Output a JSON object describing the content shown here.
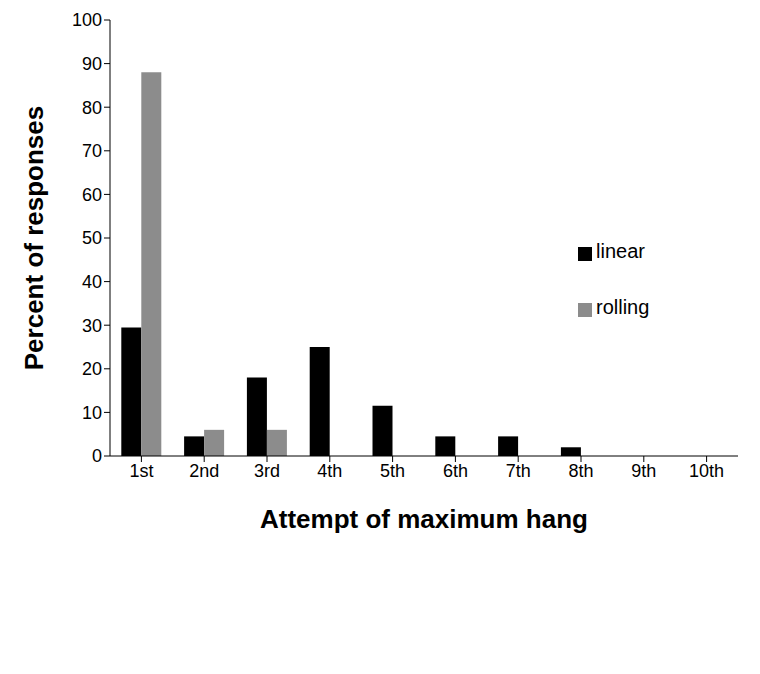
{
  "chart_data": {
    "type": "bar",
    "x_label": "Attempt of maximum hang",
    "y_label": "Percent of responses",
    "categories": [
      "1st",
      "2nd",
      "3rd",
      "4th",
      "5th",
      "6th",
      "7th",
      "8th",
      "9th",
      "10th"
    ],
    "series": [
      {
        "name": "linear",
        "color": "#000000",
        "values": [
          29.5,
          4.5,
          18,
          25,
          11.5,
          4.5,
          4.5,
          2,
          0,
          0
        ]
      },
      {
        "name": "rolling",
        "color": "#8c8c8c",
        "values": [
          88,
          6,
          6,
          0,
          0,
          0,
          0,
          0,
          0,
          0
        ]
      }
    ],
    "ylim": [
      0,
      100
    ],
    "yticks": [
      0,
      10,
      20,
      30,
      40,
      50,
      60,
      70,
      80,
      90,
      100
    ],
    "grid": false,
    "legend": "right"
  }
}
